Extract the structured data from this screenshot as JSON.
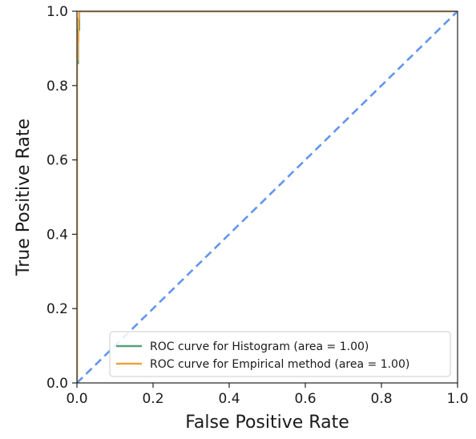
{
  "chart_data": {
    "type": "line",
    "title": "",
    "xlabel": "False Positive Rate",
    "ylabel": "True Positive Rate",
    "xlim": [
      0.0,
      1.0
    ],
    "ylim": [
      0.0,
      1.0
    ],
    "x_ticks": [
      0.0,
      0.2,
      0.4,
      0.6,
      0.8,
      1.0
    ],
    "y_ticks": [
      0.0,
      0.2,
      0.4,
      0.6,
      0.8,
      1.0
    ],
    "x_tick_labels": [
      "0.0",
      "0.2",
      "0.4",
      "0.6",
      "0.8",
      "1.0"
    ],
    "y_tick_labels": [
      "0.0",
      "0.2",
      "0.4",
      "0.6",
      "0.8",
      "1.0"
    ],
    "grid": false,
    "legend_position": "lower-right",
    "series": [
      {
        "name": "ROC curve for Histogram (area = 1.00)",
        "color": "#5b9e78",
        "x": [
          0.0,
          0.0,
          0.003,
          0.003,
          0.006,
          0.006,
          1.0
        ],
        "y": [
          0.0,
          0.86,
          0.86,
          0.95,
          0.95,
          1.0,
          1.0
        ]
      },
      {
        "name": "ROC curve for Empirical method (area = 1.00)",
        "color": "#f0a23c",
        "x": [
          0.0,
          0.0,
          0.002,
          0.002,
          0.004,
          0.004,
          0.006,
          0.006,
          1.0
        ],
        "y": [
          0.0,
          0.87,
          0.87,
          0.92,
          0.92,
          0.98,
          0.98,
          1.0,
          1.0
        ]
      },
      {
        "color": "#6495ed",
        "style": "dashed",
        "x": [
          0.0,
          1.0
        ],
        "y": [
          0.0,
          1.0
        ]
      }
    ]
  }
}
